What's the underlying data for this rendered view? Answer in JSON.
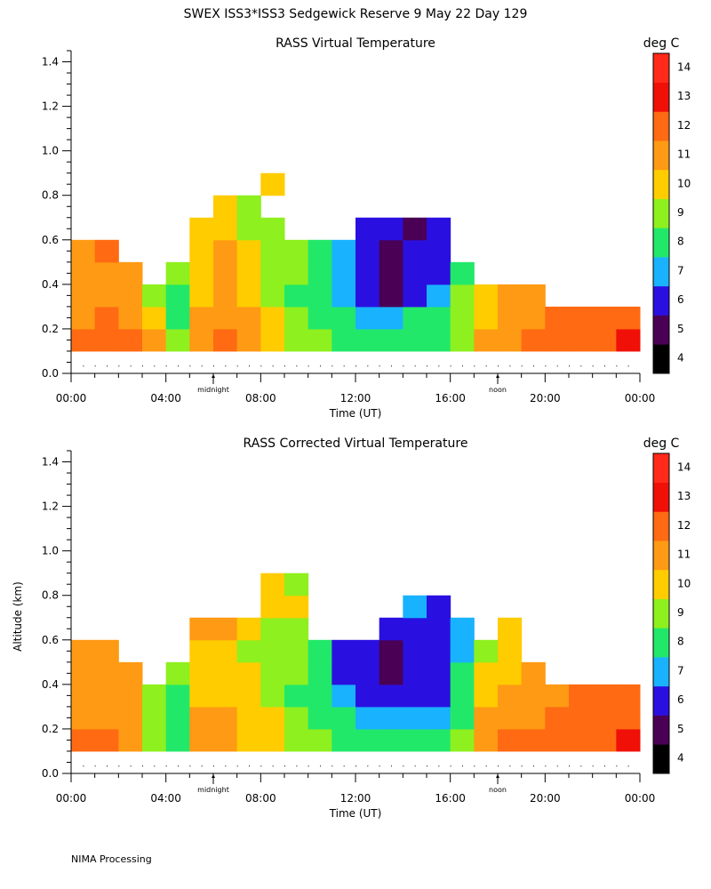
{
  "title": "SWEX ISS3*ISS3 Sedgewick Reserve   9 May 22 Day 129",
  "footer": "NIMA Processing",
  "colorbar": {
    "unit": "deg C",
    "levels": [
      4,
      5,
      6,
      7,
      8,
      9,
      10,
      11,
      12,
      13,
      14
    ],
    "colors": [
      "#000000",
      "#4a0055",
      "#2a10e0",
      "#19b2ff",
      "#22e86a",
      "#8ef01e",
      "#ffcc00",
      "#ff9a14",
      "#ff6a12",
      "#f01008",
      "#ff2a1a"
    ]
  },
  "chart_data": [
    {
      "type": "heatmap",
      "title": "RASS Virtual Temperature",
      "xlabel": "Time (UT)",
      "ylabel": "",
      "unit_label": "deg C",
      "x_ticks": [
        "00:00",
        "04:00",
        "08:00",
        "12:00",
        "16:00",
        "20:00",
        "00:00"
      ],
      "x_range_hours": [
        0,
        24
      ],
      "y_ticks": [
        "0.0",
        "0.2",
        "0.4",
        "0.6",
        "0.8",
        "1.0",
        "1.2",
        "1.4"
      ],
      "y_range_km": [
        0,
        1.45
      ],
      "markers": [
        {
          "label": "midnight",
          "hour": 6
        },
        {
          "label": "noon",
          "hour": 18
        }
      ],
      "range_gate_row_km": 0.035,
      "times_h": [
        0.5,
        1.5,
        2.5,
        3.5,
        4.5,
        5.5,
        6.5,
        7.5,
        8.5,
        9.5,
        10.5,
        11.5,
        12.5,
        13.5,
        14.5,
        15.5,
        16.5,
        17.5,
        18.5,
        19.5,
        20.5,
        21.5,
        22.5,
        23.5
      ],
      "altitudes_km": [
        0.15,
        0.25,
        0.35,
        0.45,
        0.55,
        0.65,
        0.75,
        0.85
      ],
      "values_degC": [
        [
          12.3,
          12.5,
          12.0,
          11.0,
          9.0,
          11.5,
          12.0,
          11.5,
          10.5,
          9.5,
          9.0,
          8.5,
          8.5,
          8.5,
          8.5,
          8.5,
          9.0,
          11.0,
          11.5,
          12.0,
          12.5,
          12.5,
          12.8,
          13.0
        ],
        [
          11.5,
          12.0,
          11.5,
          10.5,
          8.5,
          11.0,
          11.5,
          11.0,
          10.0,
          9.0,
          8.5,
          8.0,
          7.5,
          7.5,
          8.5,
          8.0,
          9.0,
          10.5,
          11.0,
          11.5,
          12.0,
          12.0,
          12.2,
          12.5
        ],
        [
          11.0,
          11.5,
          11.0,
          9.5,
          8.8,
          10.5,
          11.0,
          10.5,
          9.5,
          8.5,
          8.0,
          7.0,
          6.0,
          5.5,
          6.5,
          7.0,
          9.0,
          10.0,
          11.0,
          11.5,
          null,
          null,
          null,
          null
        ],
        [
          11.0,
          11.0,
          11.0,
          null,
          9.5,
          10.5,
          11.0,
          10.0,
          9.5,
          9.0,
          8.5,
          7.0,
          6.0,
          5.3,
          6.0,
          6.5,
          8.5,
          null,
          null,
          null,
          null,
          null,
          null,
          null
        ],
        [
          11.0,
          12.0,
          null,
          null,
          null,
          10.5,
          11.0,
          10.0,
          9.0,
          9.5,
          8.0,
          7.5,
          6.0,
          5.5,
          6.0,
          6.0,
          null,
          null,
          null,
          null,
          null,
          null,
          null,
          null
        ],
        [
          null,
          null,
          null,
          null,
          null,
          10.0,
          10.5,
          9.5,
          9.0,
          null,
          null,
          null,
          6.0,
          6.0,
          5.5,
          6.0,
          null,
          null,
          null,
          null,
          null,
          null,
          null,
          null
        ],
        [
          null,
          null,
          null,
          null,
          null,
          null,
          10.0,
          9.5,
          null,
          null,
          null,
          null,
          null,
          null,
          null,
          null,
          null,
          null,
          null,
          null,
          null,
          null,
          null,
          null
        ],
        [
          null,
          null,
          null,
          null,
          null,
          null,
          null,
          null,
          10.0,
          null,
          null,
          null,
          null,
          null,
          null,
          null,
          null,
          null,
          null,
          null,
          null,
          null,
          null,
          null
        ]
      ]
    },
    {
      "type": "heatmap",
      "title": "RASS Corrected Virtual Temperature",
      "xlabel": "Time (UT)",
      "ylabel": "Altitude (km)",
      "unit_label": "deg C",
      "x_ticks": [
        "00:00",
        "04:00",
        "08:00",
        "12:00",
        "16:00",
        "20:00",
        "00:00"
      ],
      "x_range_hours": [
        0,
        24
      ],
      "y_ticks": [
        "0.0",
        "0.2",
        "0.4",
        "0.6",
        "0.8",
        "1.0",
        "1.2",
        "1.4"
      ],
      "y_range_km": [
        0,
        1.45
      ],
      "markers": [
        {
          "label": "midnight",
          "hour": 6
        },
        {
          "label": "noon",
          "hour": 18
        }
      ],
      "range_gate_row_km": 0.035,
      "times_h": [
        0.5,
        1.5,
        2.5,
        3.5,
        4.5,
        5.5,
        6.5,
        7.5,
        8.5,
        9.5,
        10.5,
        11.5,
        12.5,
        13.5,
        14.5,
        15.5,
        16.5,
        17.5,
        18.5,
        19.5,
        20.5,
        21.5,
        22.5,
        23.5
      ],
      "altitudes_km": [
        0.15,
        0.25,
        0.35,
        0.45,
        0.55,
        0.65,
        0.75,
        0.85
      ],
      "values_degC": [
        [
          12.3,
          12.0,
          11.5,
          9.5,
          8.5,
          11.5,
          11.5,
          10.5,
          10.5,
          9.5,
          9.0,
          8.5,
          8.5,
          8.5,
          8.5,
          8.5,
          9.0,
          11.5,
          12.0,
          12.0,
          12.5,
          12.5,
          12.8,
          13.0
        ],
        [
          11.5,
          11.5,
          11.0,
          9.0,
          8.0,
          11.0,
          11.0,
          10.0,
          10.0,
          9.0,
          8.5,
          8.0,
          7.0,
          7.0,
          7.5,
          7.5,
          8.5,
          11.0,
          11.5,
          11.5,
          12.0,
          12.0,
          12.5,
          12.5
        ],
        [
          11.0,
          11.5,
          11.0,
          9.0,
          8.5,
          10.5,
          10.5,
          10.0,
          9.5,
          8.5,
          8.0,
          7.0,
          6.0,
          6.0,
          6.5,
          6.5,
          8.0,
          10.0,
          11.0,
          11.0,
          11.5,
          12.0,
          12.0,
          12.0
        ],
        [
          11.0,
          11.5,
          11.0,
          null,
          9.5,
          10.5,
          10.0,
          10.0,
          9.5,
          9.0,
          8.0,
          6.5,
          6.0,
          5.5,
          6.0,
          6.5,
          8.0,
          10.0,
          10.5,
          11.0,
          null,
          null,
          null,
          null
        ],
        [
          11.0,
          11.5,
          null,
          null,
          null,
          10.5,
          10.0,
          9.5,
          9.5,
          9.0,
          8.5,
          6.5,
          6.0,
          5.5,
          6.0,
          6.5,
          7.0,
          9.5,
          10.0,
          null,
          null,
          null,
          null,
          null
        ],
        [
          null,
          null,
          null,
          null,
          null,
          11.5,
          11.0,
          10.0,
          9.5,
          9.5,
          null,
          null,
          null,
          6.5,
          6.5,
          6.0,
          7.0,
          null,
          10.0,
          null,
          null,
          null,
          null,
          null
        ],
        [
          null,
          null,
          null,
          null,
          null,
          null,
          null,
          null,
          10.0,
          10.0,
          null,
          null,
          null,
          null,
          7.0,
          6.5,
          null,
          null,
          null,
          null,
          null,
          null,
          null,
          null
        ],
        [
          null,
          null,
          null,
          null,
          null,
          null,
          null,
          null,
          10.5,
          9.5,
          null,
          null,
          null,
          null,
          null,
          null,
          null,
          null,
          null,
          null,
          null,
          null,
          null,
          null
        ]
      ]
    }
  ]
}
